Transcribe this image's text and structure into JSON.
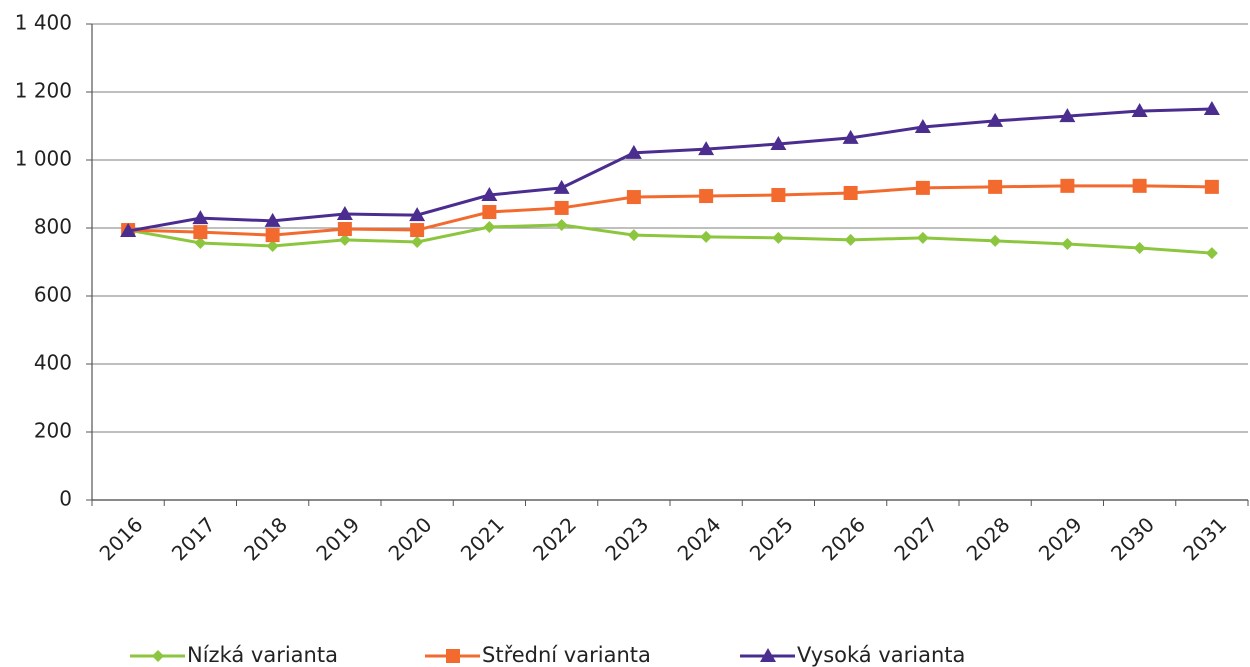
{
  "chart_data": {
    "type": "line",
    "categories": [
      "2016",
      "2017",
      "2018",
      "2019",
      "2020",
      "2021",
      "2022",
      "2023",
      "2024",
      "2025",
      "2026",
      "2027",
      "2028",
      "2029",
      "2030",
      "2031"
    ],
    "series": [
      {
        "name": "Nízká varianta",
        "color": "#8cc63f",
        "marker": "diamond",
        "values": [
          794,
          756,
          747,
          765,
          759,
          803,
          809,
          779,
          774,
          771,
          765,
          771,
          762,
          753,
          741,
          726
        ]
      },
      {
        "name": "Střední varianta",
        "color": "#f26a2e",
        "marker": "square",
        "values": [
          794,
          788,
          779,
          797,
          794,
          847,
          859,
          891,
          894,
          897,
          903,
          918,
          921,
          924,
          924,
          921
        ]
      },
      {
        "name": "Vysoká varianta",
        "color": "#4a2d8f",
        "marker": "triangle",
        "values": [
          791,
          829,
          821,
          841,
          838,
          897,
          918,
          1021,
          1032,
          1047,
          1065,
          1097,
          1115,
          1129,
          1144,
          1150
        ]
      }
    ],
    "ylim": [
      0,
      1400
    ],
    "yticks": [
      0,
      200,
      400,
      600,
      800,
      {
        "value": 1000,
        "label": "1 000"
      },
      {
        "value": 1200,
        "label": "1 200"
      },
      {
        "value": 1400,
        "label": "1 400"
      }
    ],
    "grid": true
  }
}
